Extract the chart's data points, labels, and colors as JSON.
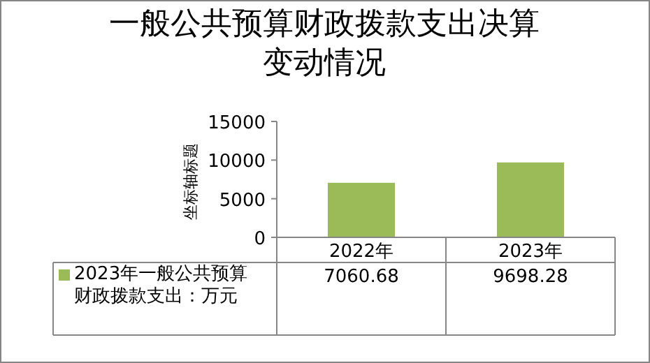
{
  "chart_data": {
    "type": "bar",
    "title": "一般公共预算财政拨款支出决算变动情况",
    "ylabel": "坐标轴标题",
    "categories": [
      "2022年",
      "2023年"
    ],
    "series": [
      {
        "name": "2023年一般公共预算财政拨款支出：万元",
        "color": "#9bbb59",
        "values": [
          7060.68,
          9698.28
        ]
      }
    ],
    "ylim": [
      0,
      15000
    ],
    "yticks": [
      0,
      5000,
      10000,
      15000
    ],
    "data_labels": true,
    "grid": false,
    "legend": "bottom left"
  }
}
